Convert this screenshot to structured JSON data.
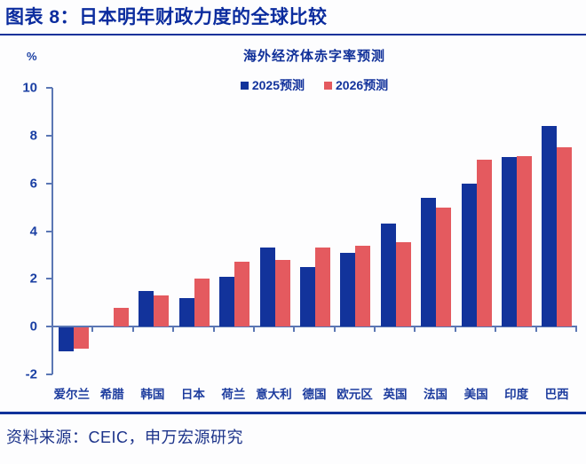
{
  "header": {
    "title": "图表 8：日本明年财政力度的全球比较"
  },
  "chart_data": {
    "type": "bar",
    "title": "海外经济体赤字率预测",
    "unit_label": "%",
    "categories": [
      "爱尔兰",
      "希腊",
      "韩国",
      "日本",
      "荷兰",
      "意大利",
      "德国",
      "欧元区",
      "英国",
      "法国",
      "美国",
      "印度",
      "巴西"
    ],
    "series": [
      {
        "name": "2025预测",
        "color": "#12339b",
        "values": [
          -1.0,
          0,
          1.5,
          1.2,
          2.1,
          3.3,
          2.5,
          3.1,
          4.3,
          5.4,
          6.0,
          7.1,
          8.4
        ]
      },
      {
        "name": "2026预测",
        "color": "#e45a5f",
        "values": [
          -0.9,
          0.8,
          1.3,
          2.0,
          2.7,
          2.8,
          3.3,
          3.4,
          3.55,
          5.0,
          7.0,
          7.15,
          7.5
        ]
      }
    ],
    "ylim": [
      -2,
      10
    ],
    "yticks": [
      10,
      8,
      6,
      4,
      2,
      0,
      -2
    ],
    "legend_position": "top",
    "grid": false
  },
  "source": {
    "label": "资料来源：CEIC，申万宏源研究"
  },
  "colors": {
    "accent_navy": "#0c2d9c",
    "axis_blue": "#5b77b4",
    "bar_blue": "#12339b",
    "bar_red": "#e45a5f"
  }
}
